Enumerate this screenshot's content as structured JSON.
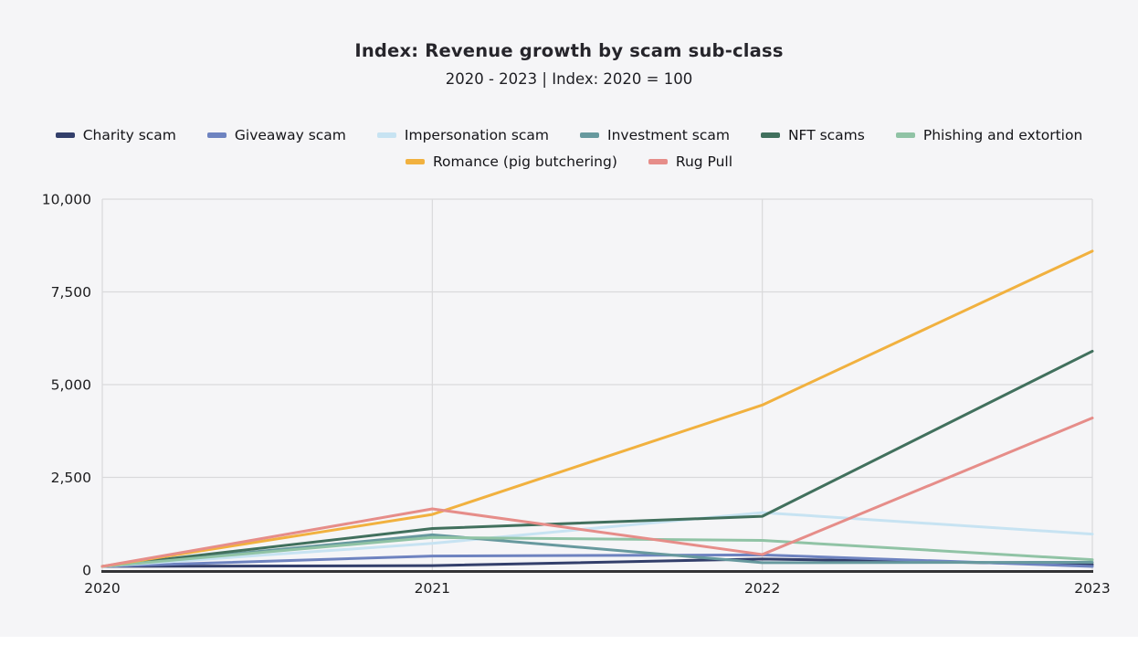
{
  "page": {
    "card_background": "#f5f5f7",
    "outer_background": "#ffffff"
  },
  "chart_data": {
    "type": "line",
    "title": "Index: Revenue growth by scam sub-class",
    "subtitle": "2020 - 2023 | Index: 2020 = 100",
    "categories": [
      "2020",
      "2021",
      "2022",
      "2023"
    ],
    "series": [
      {
        "name": "Charity scam",
        "color": "#333f6b",
        "values": [
          100,
          120,
          300,
          150
        ]
      },
      {
        "name": "Giveaway scam",
        "color": "#6e83c0",
        "values": [
          100,
          380,
          410,
          100
        ]
      },
      {
        "name": "Impersonation scam",
        "color": "#c7e3f2",
        "values": [
          100,
          720,
          1550,
          970
        ]
      },
      {
        "name": "Investment scam",
        "color": "#67999e",
        "values": [
          100,
          950,
          200,
          210
        ]
      },
      {
        "name": "NFT scams",
        "color": "#41705d",
        "values": [
          100,
          1120,
          1450,
          5900
        ]
      },
      {
        "name": "Phishing and extortion",
        "color": "#90c3a5",
        "values": [
          100,
          880,
          800,
          280
        ]
      },
      {
        "name": "Romance (pig butchering)",
        "color": "#f1b13f",
        "values": [
          100,
          1500,
          4450,
          8600
        ]
      },
      {
        "name": "Rug Pull",
        "color": "#e68d89",
        "values": [
          100,
          1650,
          420,
          4100
        ]
      }
    ],
    "ylim": [
      0,
      10000
    ],
    "y_ticks": [
      0,
      2500,
      5000,
      7500,
      10000
    ],
    "y_tick_labels": [
      "0",
      "2,500",
      "5,000",
      "7,500",
      "10,000"
    ],
    "grid": true,
    "legend_position": "top",
    "grid_color": "#d9d9db",
    "axis_color": "#333336",
    "tick_label_color": "#1c1c1e"
  }
}
